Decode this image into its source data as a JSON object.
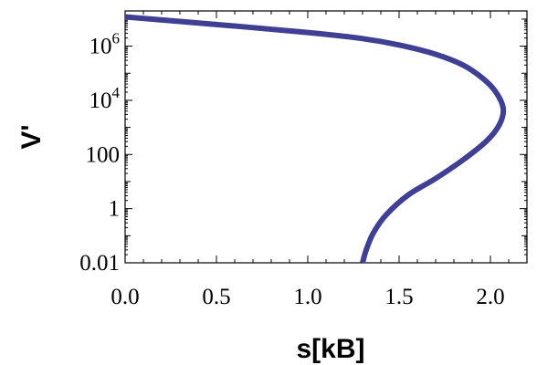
{
  "chart_data": {
    "type": "line",
    "title": "",
    "xlabel": "s[kB]",
    "ylabel": "V'",
    "xlim": [
      0.0,
      2.2
    ],
    "ylim_log10": [
      -2,
      7.3
    ],
    "yscale": "log",
    "grid": false,
    "legend": "none",
    "x_ticks": [
      {
        "value": 0.0,
        "label": "0.0"
      },
      {
        "value": 0.5,
        "label": "0.5"
      },
      {
        "value": 1.0,
        "label": "1.0"
      },
      {
        "value": 1.5,
        "label": "1.5"
      },
      {
        "value": 2.0,
        "label": "2.0"
      }
    ],
    "y_ticks": [
      {
        "exp": -2,
        "label": "0.01",
        "base": "",
        "sup": ""
      },
      {
        "exp": 0,
        "label": "1",
        "base": "",
        "sup": ""
      },
      {
        "exp": 2,
        "label": "100",
        "base": "",
        "sup": ""
      },
      {
        "exp": 4,
        "label": "",
        "base": "10",
        "sup": "4"
      },
      {
        "exp": 6,
        "label": "",
        "base": "10",
        "sup": "6"
      }
    ],
    "series": [
      {
        "color": "#3f3f94",
        "points": [
          {
            "x": 0.0,
            "y": 12000000.0
          },
          {
            "x": 0.5,
            "y": 6300000.0
          },
          {
            "x": 1.0,
            "y": 3200000.0
          },
          {
            "x": 1.3,
            "y": 1900000.0
          },
          {
            "x": 1.5,
            "y": 1100000.0
          },
          {
            "x": 1.7,
            "y": 500000.0
          },
          {
            "x": 1.85,
            "y": 200000.0
          },
          {
            "x": 1.96,
            "y": 63000.0
          },
          {
            "x": 2.03,
            "y": 20000.0
          },
          {
            "x": 2.07,
            "y": 5000.0
          },
          {
            "x": 2.05,
            "y": 1300.0
          },
          {
            "x": 1.98,
            "y": 320
          },
          {
            "x": 1.85,
            "y": 63
          },
          {
            "x": 1.7,
            "y": 13
          },
          {
            "x": 1.55,
            "y": 3.2
          },
          {
            "x": 1.43,
            "y": 0.6
          },
          {
            "x": 1.36,
            "y": 0.13
          },
          {
            "x": 1.32,
            "y": 0.03
          },
          {
            "x": 1.3,
            "y": 0.01
          }
        ]
      }
    ]
  }
}
